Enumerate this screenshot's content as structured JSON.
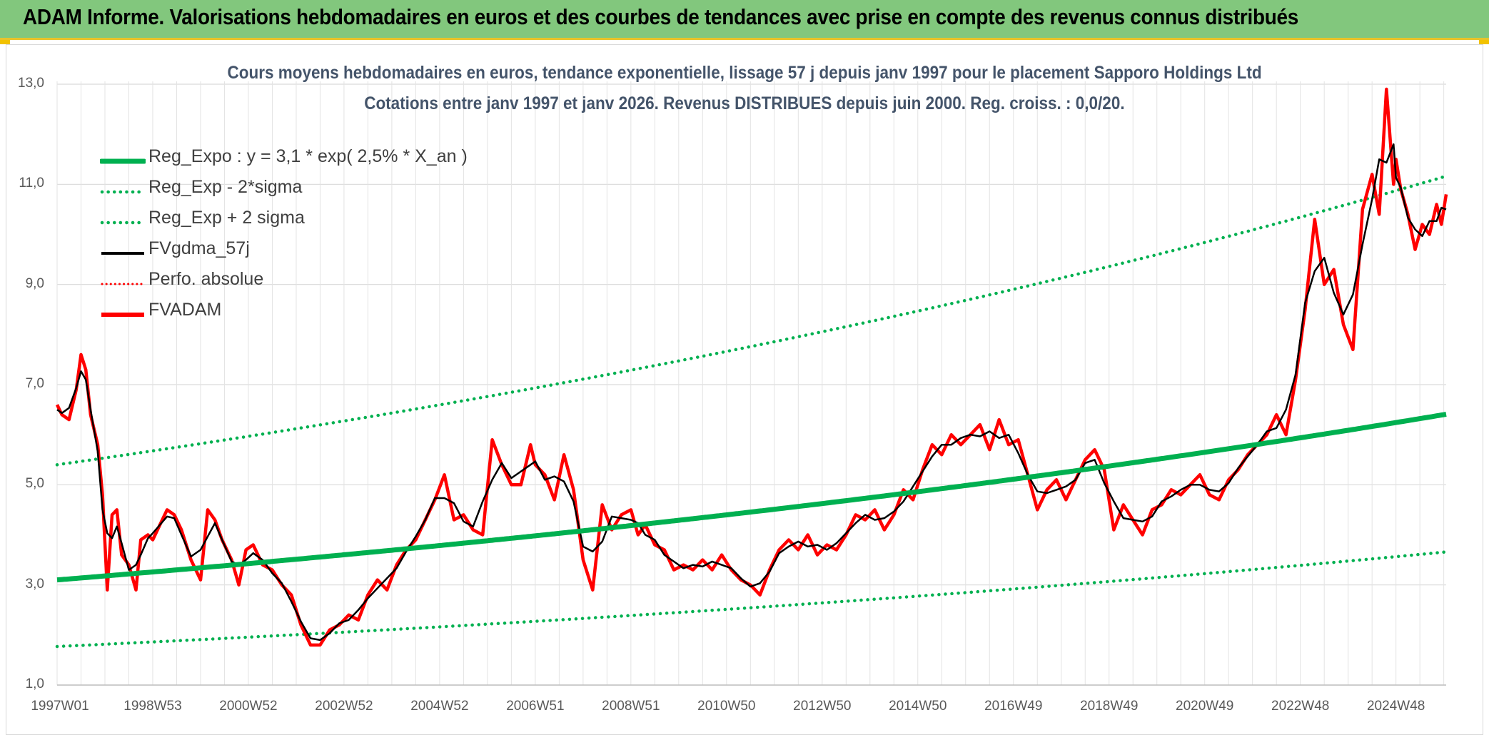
{
  "banner": {
    "title": "ADAM Informe. Valorisations hebdomadaires en euros et des courbes de tendances avec prise en compte des revenus connus distribués"
  },
  "colors": {
    "banner": "#82c77d",
    "reg_expo": "#00b050",
    "fvgdma": "#000000",
    "fvadam": "#ff0000",
    "title_text": "#44546a"
  },
  "chart_data": {
    "type": "line",
    "title": "Cours moyens hebdomadaires en euros, tendance exponentielle, lissage 57 j depuis janv 1997 pour le placement Sapporo Holdings Ltd",
    "subtitle": "Cotations entre janv 1997 et janv 2026. Revenus DISTRIBUES depuis juin 2000. Reg. croiss. : 0,0/20.",
    "xlabel": "",
    "ylabel": "",
    "ylim": [
      1,
      13
    ],
    "xlim": [
      1997.0,
      2026.05
    ],
    "y_ticks": [
      "1,0",
      "3,0",
      "5,0",
      "7,0",
      "9,0",
      "11,0",
      "13,0"
    ],
    "y_tick_values": [
      1,
      3,
      5,
      7,
      9,
      11,
      13
    ],
    "x_ticks": [
      "1997W01",
      "1998W53",
      "2000W52",
      "2002W52",
      "2004W52",
      "2006W51",
      "2008W51",
      "2010W50",
      "2012W50",
      "2014W50",
      "2016W49",
      "2018W49",
      "2020W49",
      "2022W48",
      "2024W48"
    ],
    "x_tick_values": [
      1997.0,
      1999.0,
      2001.0,
      2003.0,
      2005.0,
      2007.0,
      2009.0,
      2011.0,
      2013.0,
      2015.0,
      2017.0,
      2019.0,
      2021.0,
      2023.0,
      2025.0
    ],
    "grid": true,
    "legend": {
      "position": "top-left",
      "items": [
        {
          "label": "Reg_Expo : y = 3,1 * exp( 2,5% *  X_an )",
          "color": "#00b050",
          "style": "solid-thick"
        },
        {
          "label": "Reg_Exp - 2*sigma",
          "color": "#00b050",
          "style": "dotted"
        },
        {
          "label": "Reg_Exp + 2 sigma",
          "color": "#00b050",
          "style": "dotted"
        },
        {
          "label": "FVgdma_57j",
          "color": "#000000",
          "style": "solid"
        },
        {
          "label": "Perfo. absolue",
          "color": "#ff0000",
          "style": "dotted"
        },
        {
          "label": "FVADAM",
          "color": "#ff0000",
          "style": "solid-thick"
        }
      ]
    },
    "series": [
      {
        "name": "Reg_Expo",
        "type": "exponential",
        "a": 3.1,
        "rate": 0.025,
        "x0": 1997.0
      },
      {
        "name": "Reg_Exp - 2*sigma",
        "type": "exponential",
        "a": 1.77,
        "rate": 0.025,
        "x0": 1997.0
      },
      {
        "name": "Reg_Exp + 2 sigma",
        "type": "exponential",
        "a": 5.4,
        "rate": 0.025,
        "x0": 1997.0
      },
      {
        "name": "FVADAM",
        "x": [
          1997.0,
          1997.1,
          1997.25,
          1997.4,
          1997.5,
          1997.6,
          1997.7,
          1997.85,
          1997.95,
          1998.05,
          1998.15,
          1998.25,
          1998.35,
          1998.5,
          1998.65,
          1998.75,
          1998.9,
          1999.0,
          1999.15,
          1999.3,
          1999.45,
          1999.6,
          1999.8,
          2000.0,
          2000.15,
          2000.3,
          2000.45,
          2000.65,
          2000.8,
          2000.95,
          2001.1,
          2001.3,
          2001.5,
          2001.7,
          2001.9,
          2002.1,
          2002.3,
          2002.5,
          2002.7,
          2002.9,
          2003.1,
          2003.3,
          2003.5,
          2003.7,
          2003.9,
          2004.1,
          2004.3,
          2004.5,
          2004.7,
          2004.9,
          2005.1,
          2005.3,
          2005.5,
          2005.7,
          2005.9,
          2006.1,
          2006.3,
          2006.5,
          2006.7,
          2006.9,
          2007.0,
          2007.2,
          2007.4,
          2007.6,
          2007.8,
          2008.0,
          2008.2,
          2008.4,
          2008.6,
          2008.8,
          2009.0,
          2009.15,
          2009.3,
          2009.5,
          2009.7,
          2009.9,
          2010.1,
          2010.3,
          2010.5,
          2010.7,
          2010.9,
          2011.1,
          2011.3,
          2011.5,
          2011.7,
          2011.9,
          2012.1,
          2012.3,
          2012.5,
          2012.7,
          2012.9,
          2013.1,
          2013.3,
          2013.5,
          2013.7,
          2013.9,
          2014.1,
          2014.3,
          2014.5,
          2014.7,
          2014.9,
          2015.1,
          2015.3,
          2015.5,
          2015.7,
          2015.9,
          2016.1,
          2016.3,
          2016.5,
          2016.7,
          2016.9,
          2017.1,
          2017.3,
          2017.5,
          2017.7,
          2017.9,
          2018.1,
          2018.3,
          2018.5,
          2018.7,
          2018.9,
          2019.1,
          2019.3,
          2019.5,
          2019.7,
          2019.9,
          2020.1,
          2020.3,
          2020.5,
          2020.7,
          2020.9,
          2021.1,
          2021.3,
          2021.5,
          2021.7,
          2021.9,
          2022.1,
          2022.3,
          2022.5,
          2022.7,
          2022.9,
          2023.1,
          2023.3,
          2023.5,
          2023.7,
          2023.9,
          2024.1,
          2024.3,
          2024.5,
          2024.65,
          2024.8,
          2024.95,
          2025.0,
          2025.1,
          2025.25,
          2025.4,
          2025.55,
          2025.7,
          2025.85,
          2025.95,
          2026.05
        ],
        "y": [
          6.6,
          6.4,
          6.3,
          6.9,
          7.6,
          7.3,
          6.4,
          5.8,
          4.8,
          2.9,
          4.4,
          4.5,
          3.6,
          3.4,
          2.9,
          3.9,
          4.0,
          3.9,
          4.2,
          4.5,
          4.4,
          4.1,
          3.5,
          3.1,
          4.5,
          4.3,
          3.9,
          3.5,
          3.0,
          3.7,
          3.8,
          3.4,
          3.3,
          3.0,
          2.8,
          2.2,
          1.8,
          1.8,
          2.1,
          2.2,
          2.4,
          2.3,
          2.8,
          3.1,
          2.9,
          3.4,
          3.7,
          3.9,
          4.3,
          4.7,
          5.2,
          4.3,
          4.4,
          4.1,
          4.0,
          5.9,
          5.4,
          5.0,
          5.0,
          5.8,
          5.4,
          5.2,
          4.7,
          5.6,
          4.9,
          3.5,
          2.9,
          4.6,
          4.1,
          4.4,
          4.5,
          4.0,
          4.2,
          3.8,
          3.7,
          3.3,
          3.4,
          3.3,
          3.5,
          3.3,
          3.6,
          3.3,
          3.1,
          3.0,
          2.8,
          3.3,
          3.7,
          3.9,
          3.7,
          4.0,
          3.6,
          3.8,
          3.7,
          4.0,
          4.4,
          4.3,
          4.5,
          4.1,
          4.4,
          4.9,
          4.7,
          5.3,
          5.8,
          5.6,
          6.0,
          5.8,
          6.0,
          6.2,
          5.7,
          6.3,
          5.8,
          5.9,
          5.2,
          4.5,
          4.9,
          5.1,
          4.7,
          5.1,
          5.5,
          5.7,
          5.3,
          4.1,
          4.6,
          4.3,
          4.0,
          4.5,
          4.6,
          4.9,
          4.8,
          5.0,
          5.2,
          4.8,
          4.7,
          5.1,
          5.3,
          5.6,
          5.8,
          6.0,
          6.4,
          6.0,
          7.1,
          8.5,
          10.3,
          9.0,
          9.3,
          8.2,
          7.7,
          10.5,
          11.2,
          10.4,
          12.9,
          11.0,
          11.5,
          10.9,
          10.4,
          9.7,
          10.2,
          10.0,
          10.6,
          10.2,
          10.8
        ]
      },
      {
        "name": "FVgdma_57j",
        "smoothing": "57j moving average of FVADAM"
      }
    ]
  }
}
